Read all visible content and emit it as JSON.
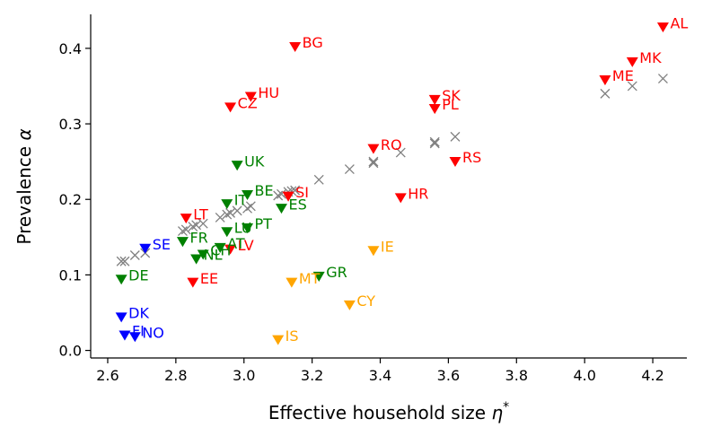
{
  "chart_data": {
    "type": "scatter",
    "title": "",
    "xlabel": "Effective household size",
    "xlabel_symbol": "η",
    "xlabel_superscript": "*",
    "ylabel": "Prevalence",
    "ylabel_symbol": "α",
    "xlim": [
      2.55,
      4.3
    ],
    "ylim": [
      -0.01,
      0.445
    ],
    "xticks": [
      "2.6",
      "2.8",
      "3.0",
      "3.2",
      "3.4",
      "3.6",
      "3.8",
      "4.0",
      "4.2"
    ],
    "xtick_values": [
      2.6,
      2.8,
      3.0,
      3.2,
      3.4,
      3.6,
      3.8,
      4.0,
      4.2
    ],
    "yticks": [
      "0.0",
      "0.1",
      "0.2",
      "0.3",
      "0.4"
    ],
    "ytick_values": [
      0.0,
      0.1,
      0.2,
      0.3,
      0.4
    ],
    "group_colors": {
      "red": "#ff0000",
      "green": "#008000",
      "blue": "#0000ff",
      "orange": "#ffa500",
      "grey": "#808080"
    },
    "countries": [
      {
        "label": "AL",
        "x": 4.23,
        "y": 0.428,
        "group": "red"
      },
      {
        "label": "MK",
        "x": 4.14,
        "y": 0.382,
        "group": "red"
      },
      {
        "label": "ME",
        "x": 4.06,
        "y": 0.358,
        "group": "red"
      },
      {
        "label": "BG",
        "x": 3.15,
        "y": 0.402,
        "group": "red"
      },
      {
        "label": "HU",
        "x": 3.02,
        "y": 0.336,
        "group": "red"
      },
      {
        "label": "CZ",
        "x": 2.96,
        "y": 0.322,
        "group": "red"
      },
      {
        "label": "SK",
        "x": 3.56,
        "y": 0.332,
        "group": "red"
      },
      {
        "label": "PL",
        "x": 3.56,
        "y": 0.32,
        "group": "red"
      },
      {
        "label": "RO",
        "x": 3.38,
        "y": 0.267,
        "group": "red"
      },
      {
        "label": "RS",
        "x": 3.62,
        "y": 0.25,
        "group": "red"
      },
      {
        "label": "HR",
        "x": 3.46,
        "y": 0.202,
        "group": "red"
      },
      {
        "label": "SI",
        "x": 3.13,
        "y": 0.204,
        "group": "red"
      },
      {
        "label": "LT",
        "x": 2.83,
        "y": 0.175,
        "group": "red"
      },
      {
        "label": "LV",
        "x": 2.96,
        "y": 0.134,
        "group": "red"
      },
      {
        "label": "EE",
        "x": 2.85,
        "y": 0.09,
        "group": "red"
      },
      {
        "label": "UK",
        "x": 2.98,
        "y": 0.245,
        "group": "green"
      },
      {
        "label": "BE",
        "x": 3.01,
        "y": 0.206,
        "group": "green"
      },
      {
        "label": "IT",
        "x": 2.95,
        "y": 0.194,
        "group": "green"
      },
      {
        "label": "ES",
        "x": 3.11,
        "y": 0.188,
        "group": "green"
      },
      {
        "label": "LU",
        "x": 2.95,
        "y": 0.157,
        "group": "green"
      },
      {
        "label": "PT",
        "x": 3.01,
        "y": 0.162,
        "group": "green"
      },
      {
        "label": "FR",
        "x": 2.82,
        "y": 0.144,
        "group": "green"
      },
      {
        "label": "AT",
        "x": 2.93,
        "y": 0.136,
        "group": "green"
      },
      {
        "label": "CH",
        "x": 2.88,
        "y": 0.127,
        "group": "green"
      },
      {
        "label": "NL",
        "x": 2.86,
        "y": 0.121,
        "group": "green"
      },
      {
        "label": "DE",
        "x": 2.64,
        "y": 0.094,
        "group": "green"
      },
      {
        "label": "GR",
        "x": 3.22,
        "y": 0.098,
        "group": "green"
      },
      {
        "label": "SE",
        "x": 2.71,
        "y": 0.135,
        "group": "blue"
      },
      {
        "label": "DK",
        "x": 2.64,
        "y": 0.044,
        "group": "blue"
      },
      {
        "label": "FI",
        "x": 2.65,
        "y": 0.02,
        "group": "blue"
      },
      {
        "label": "NO",
        "x": 2.68,
        "y": 0.018,
        "group": "blue"
      },
      {
        "label": "IE",
        "x": 3.38,
        "y": 0.132,
        "group": "orange"
      },
      {
        "label": "MT",
        "x": 3.14,
        "y": 0.09,
        "group": "orange"
      },
      {
        "label": "CY",
        "x": 3.31,
        "y": 0.06,
        "group": "orange"
      },
      {
        "label": "IS",
        "x": 3.1,
        "y": 0.014,
        "group": "orange"
      }
    ],
    "reference_series": {
      "name": "reference (grey crosses)",
      "marker": "x",
      "points": [
        [
          2.64,
          0.118
        ],
        [
          2.65,
          0.118
        ],
        [
          2.68,
          0.126
        ],
        [
          2.71,
          0.129
        ],
        [
          2.82,
          0.158
        ],
        [
          2.83,
          0.16
        ],
        [
          2.85,
          0.164
        ],
        [
          2.86,
          0.166
        ],
        [
          2.88,
          0.168
        ],
        [
          2.93,
          0.176
        ],
        [
          2.95,
          0.18
        ],
        [
          2.96,
          0.182
        ],
        [
          2.98,
          0.185
        ],
        [
          3.01,
          0.188
        ],
        [
          3.02,
          0.191
        ],
        [
          3.1,
          0.205
        ],
        [
          3.11,
          0.207
        ],
        [
          3.13,
          0.21
        ],
        [
          3.14,
          0.211
        ],
        [
          3.15,
          0.212
        ],
        [
          3.22,
          0.226
        ],
        [
          3.31,
          0.24
        ],
        [
          3.38,
          0.248
        ],
        [
          3.38,
          0.25
        ],
        [
          3.46,
          0.262
        ],
        [
          3.56,
          0.274
        ],
        [
          3.56,
          0.276
        ],
        [
          3.62,
          0.283
        ],
        [
          4.06,
          0.34
        ],
        [
          4.14,
          0.35
        ],
        [
          4.23,
          0.36
        ]
      ]
    }
  }
}
